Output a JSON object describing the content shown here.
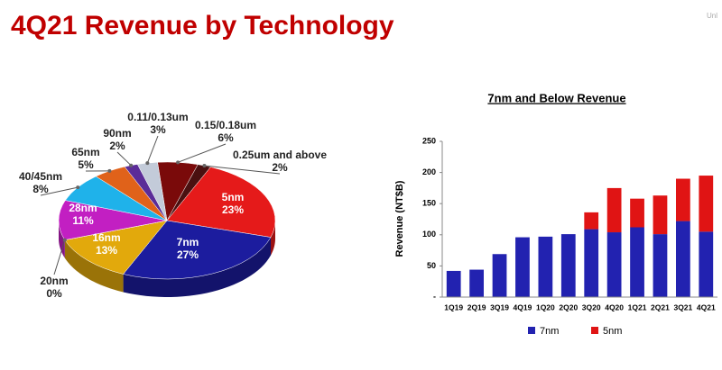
{
  "title": "4Q21 Revenue by Technology",
  "corner_text": "Unl",
  "chart_data": [
    {
      "type": "pie3d",
      "categories": [
        "0.15/0.18um",
        "0.25um and above",
        "5nm",
        "7nm",
        "16nm",
        "20nm",
        "28nm",
        "40/45nm",
        "65nm",
        "90nm",
        "0.11/0.13um"
      ],
      "values": [
        6,
        2,
        23,
        27,
        13,
        0,
        11,
        8,
        5,
        2,
        3
      ],
      "value_labels": [
        "6%",
        "2%",
        "23%",
        "27%",
        "13%",
        "0%",
        "11%",
        "8%",
        "5%",
        "2%",
        "3%"
      ],
      "colors": [
        "#7a0a0a",
        "#4a1010",
        "#e51a1a",
        "#1c1c9e",
        "#e2a90c",
        "#8c8c8c",
        "#c21fc2",
        "#1fb2ea",
        "#e0621a",
        "#5b2c98",
        "#c3cbd9"
      ]
    },
    {
      "type": "stacked_bar",
      "title": "7nm and Below Revenue",
      "y_label": "Revenue (NT$B)",
      "categories": [
        "1Q19",
        "2Q19",
        "3Q19",
        "4Q19",
        "1Q20",
        "2Q20",
        "3Q20",
        "4Q20",
        "1Q21",
        "2Q21",
        "3Q21",
        "4Q21"
      ],
      "series": [
        {
          "name": "7nm",
          "color": "#2222b0",
          "values": [
            42,
            44,
            69,
            96,
            97,
            101,
            109,
            104,
            112,
            101,
            122,
            105
          ]
        },
        {
          "name": "5nm",
          "color": "#e01414",
          "values": [
            null,
            null,
            null,
            null,
            null,
            null,
            27,
            71,
            46,
            62,
            68,
            90
          ]
        }
      ],
      "ylim": [
        0,
        250
      ],
      "yticks": [
        {
          "value": 0,
          "label": "-"
        },
        50,
        100,
        150,
        200,
        250
      ],
      "legend": "bottom"
    }
  ]
}
